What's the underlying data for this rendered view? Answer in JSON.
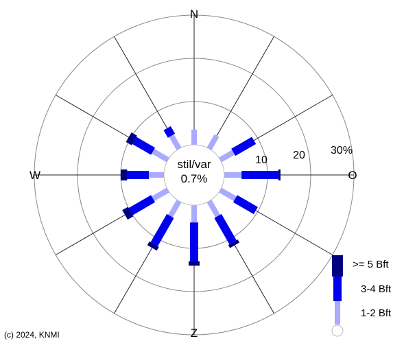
{
  "chart_data": {
    "type": "polar-bar",
    "directions": [
      {
        "label": "N",
        "bands": [
          3.5,
          0,
          0
        ]
      },
      {
        "label": "",
        "bands": [
          3.5,
          0,
          0
        ]
      },
      {
        "label": "",
        "bands": [
          3.5,
          5.5,
          0
        ]
      },
      {
        "label": "O",
        "bands": [
          4.0,
          8.5,
          0.5
        ]
      },
      {
        "label": "",
        "bands": [
          4.0,
          5.5,
          0
        ]
      },
      {
        "label": "",
        "bands": [
          4.0,
          7.0,
          0.8
        ]
      },
      {
        "label": "Z",
        "bands": [
          4.0,
          9.0,
          1.0
        ]
      },
      {
        "label": "",
        "bands": [
          4.0,
          7.5,
          1.0
        ]
      },
      {
        "label": "",
        "bands": [
          4.0,
          6.0,
          1.5
        ]
      },
      {
        "label": "W",
        "bands": [
          3.5,
          5.0,
          1.5
        ]
      },
      {
        "label": "",
        "bands": [
          4.0,
          5.0,
          1.5
        ]
      },
      {
        "label": "",
        "bands": [
          3.5,
          2.0,
          0
        ]
      }
    ],
    "compass_labels": [
      "N",
      "O",
      "Z",
      "W"
    ],
    "rings": [
      10,
      20,
      30
    ],
    "ring_labels": [
      "10",
      "20",
      "30%"
    ],
    "center_text": [
      "stil/var",
      "0.7%"
    ],
    "legend": [
      {
        "label": ">= 5 Bft",
        "color": "#000080"
      },
      {
        "label": "3-4 Bft",
        "color": "#0000ee"
      },
      {
        "label": "1-2 Bft",
        "color": "#aaaaff"
      }
    ]
  },
  "copyright": "(c) 2024, KNMI"
}
